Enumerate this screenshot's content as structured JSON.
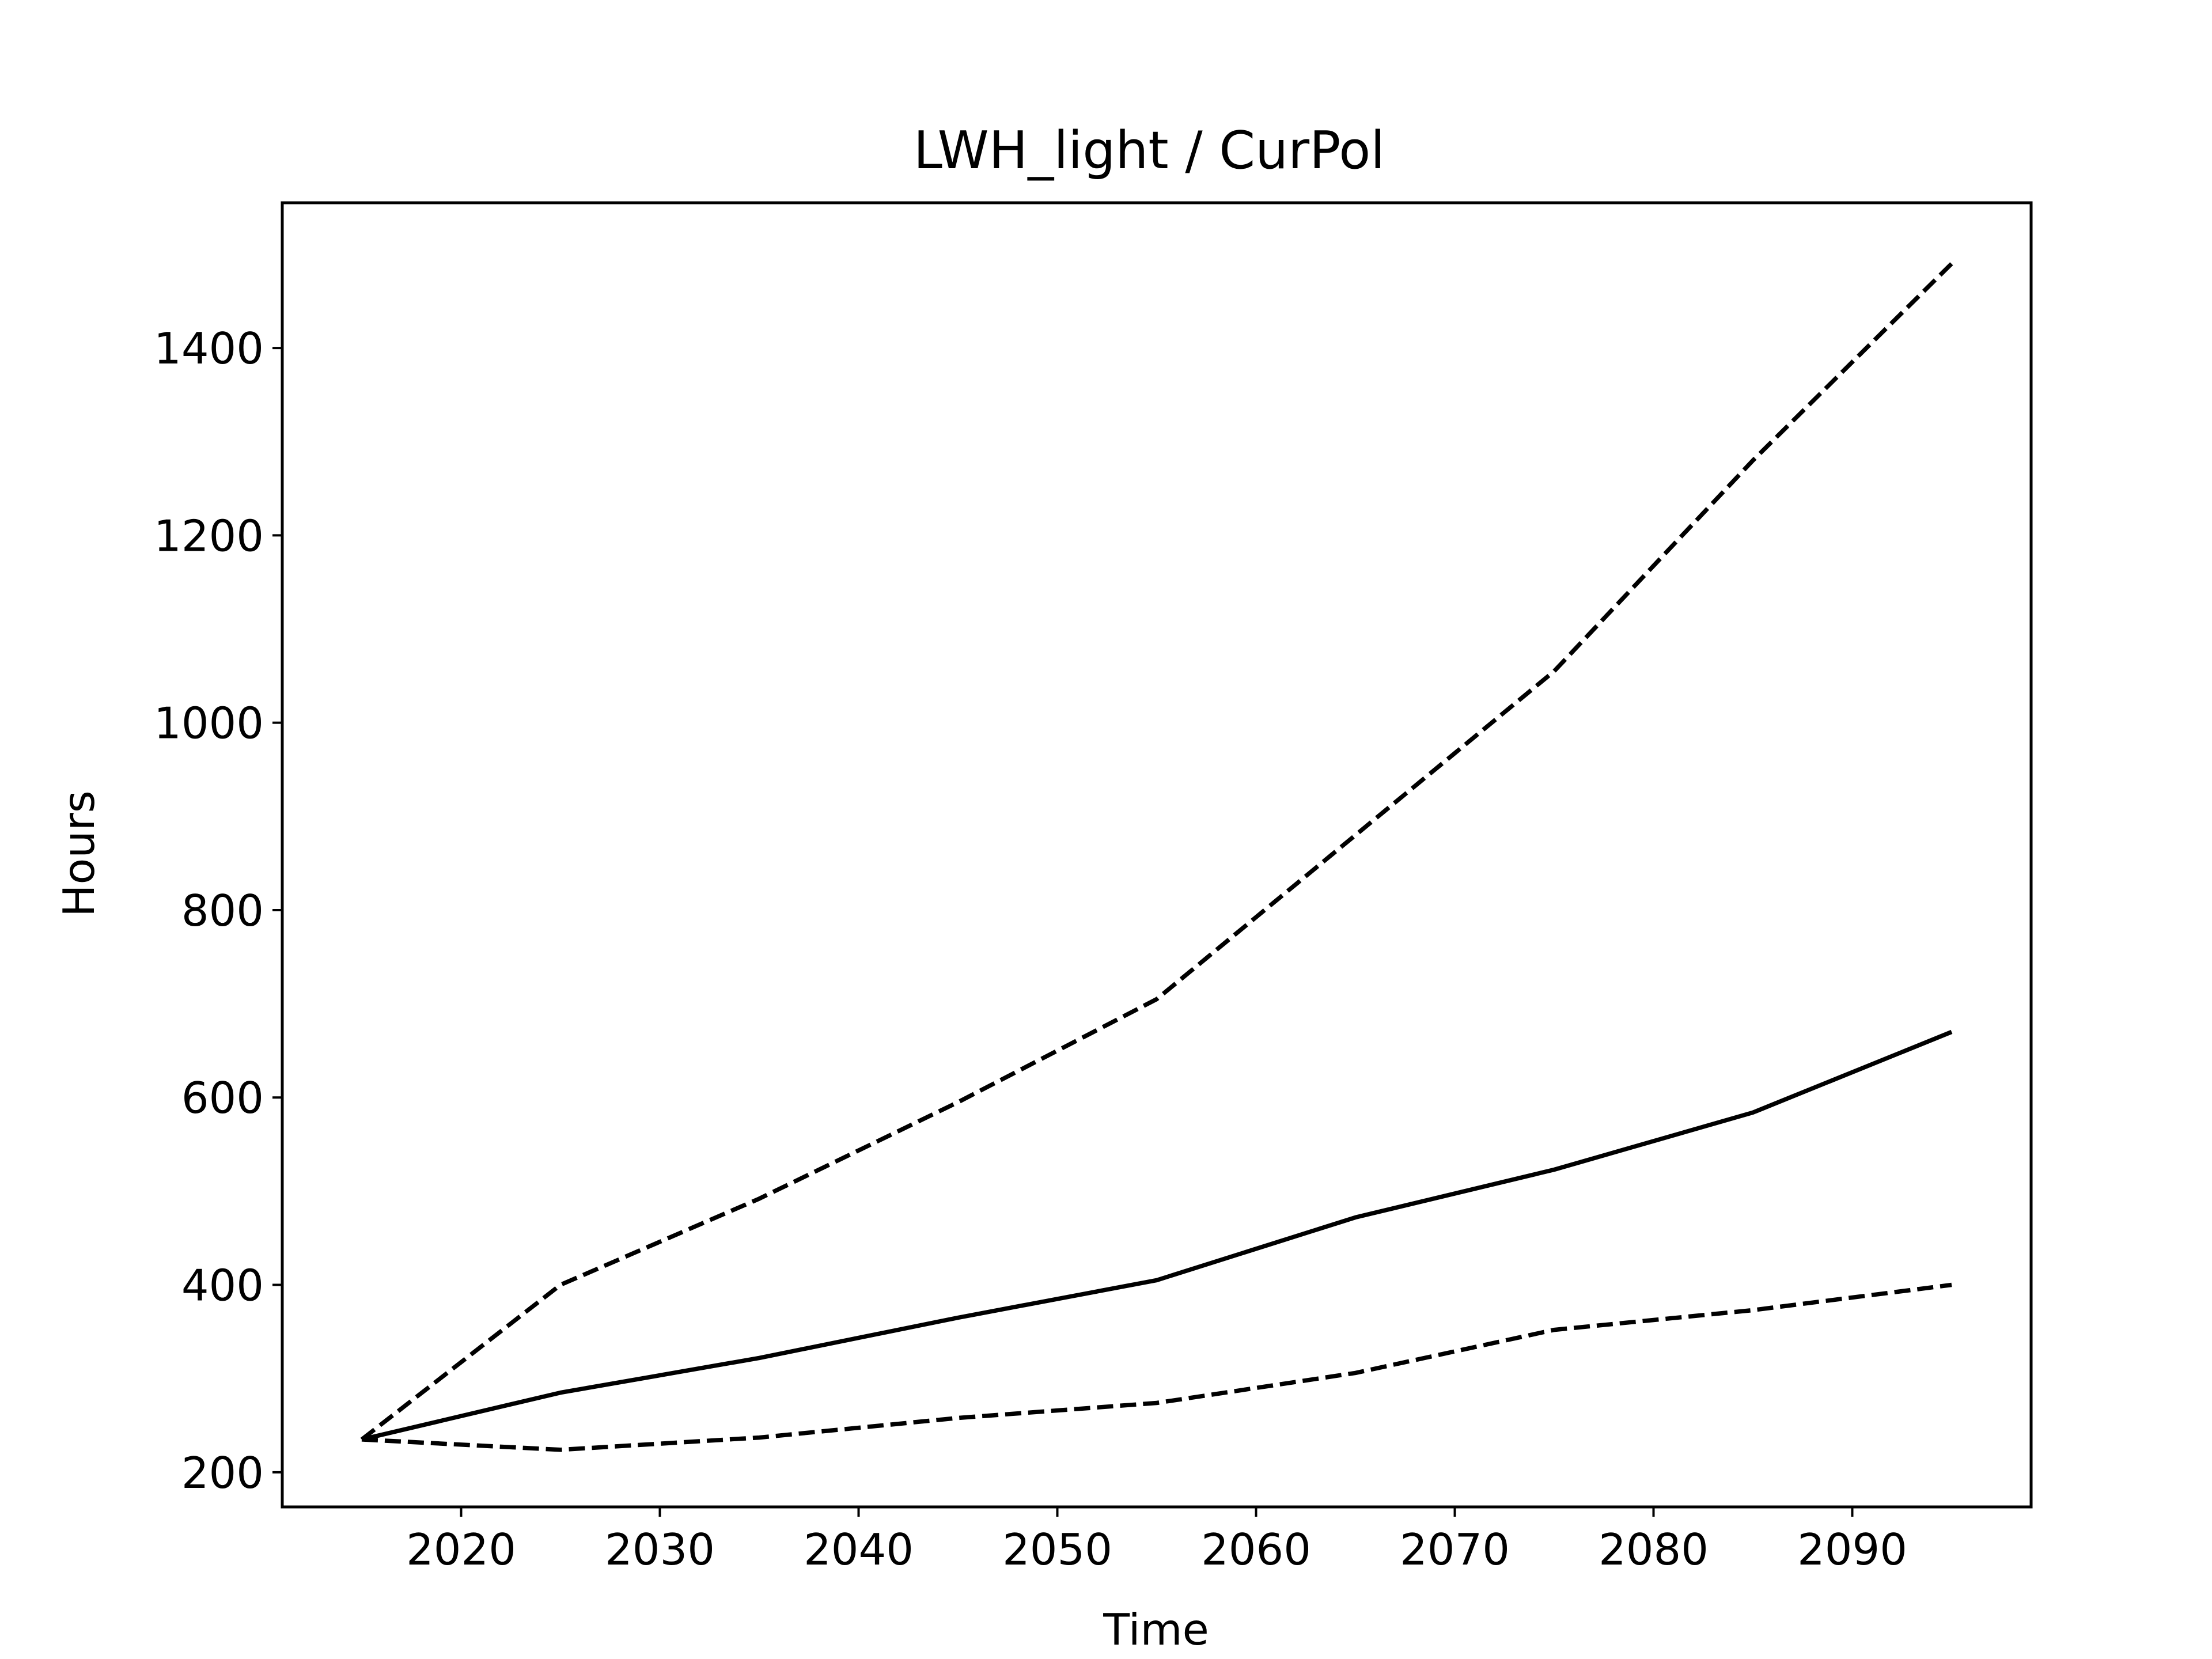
{
  "chart_data": {
    "type": "line",
    "title": "LWH_light / CurPol",
    "xlabel": "Time",
    "ylabel": "Hours",
    "xlim": [
      2011,
      2099
    ],
    "ylim": [
      163,
      1555
    ],
    "x_ticks": [
      2020,
      2030,
      2040,
      2050,
      2060,
      2070,
      2080,
      2090
    ],
    "y_ticks": [
      200,
      400,
      600,
      800,
      1000,
      1200,
      1400
    ],
    "grid": false,
    "legend": "none",
    "x": [
      2015,
      2025,
      2035,
      2045,
      2055,
      2065,
      2075,
      2085,
      2095
    ],
    "series": [
      {
        "style": "dashed",
        "color": "#000000",
        "values": [
          235,
          400,
          492,
          595,
          705,
          880,
          1055,
          1280,
          1490
        ]
      },
      {
        "style": "solid",
        "color": "#000000",
        "values": [
          235,
          285,
          322,
          365,
          405,
          472,
          523,
          584,
          670
        ]
      },
      {
        "style": "dashed",
        "color": "#000000",
        "values": [
          235,
          224,
          237,
          258,
          274,
          306,
          352,
          373,
          400
        ]
      }
    ]
  }
}
